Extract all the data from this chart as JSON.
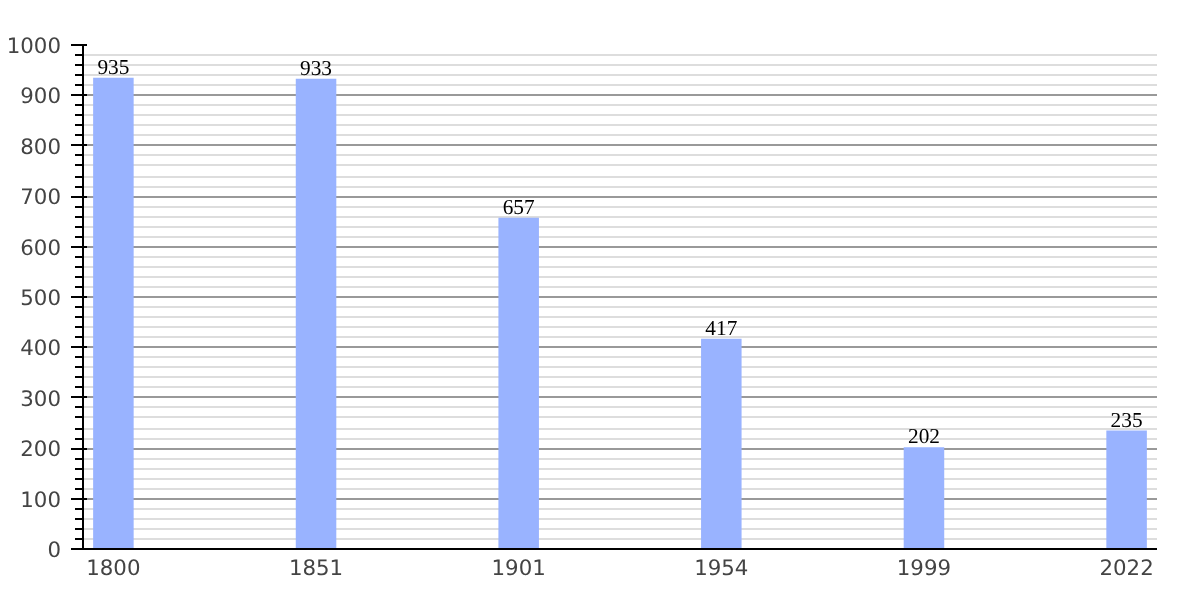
{
  "chart_data": {
    "type": "bar",
    "categories": [
      "1800",
      "1851",
      "1901",
      "1954",
      "1999",
      "2022"
    ],
    "values": [
      935,
      933,
      657,
      417,
      202,
      235
    ],
    "color": "#99b3ff",
    "ylim": [
      0,
      1000
    ],
    "yticks": [
      0,
      100,
      200,
      300,
      400,
      500,
      600,
      700,
      800,
      900,
      1000
    ],
    "grid": "y",
    "data_labels": true
  }
}
